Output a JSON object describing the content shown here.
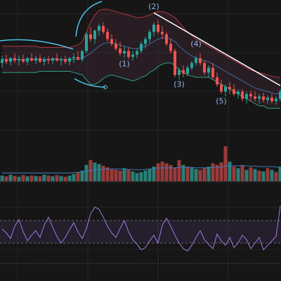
{
  "chart_data": [
    {
      "type": "candlestick",
      "title": "",
      "xlabel": "",
      "ylabel": "",
      "ylim": [
        0,
        100
      ],
      "grid": true,
      "colors": {
        "up": "#26a69a",
        "down": "#ef5350",
        "bb_upper": "#b0353f",
        "bb_middle": "#3f6ea8",
        "bb_lower": "#2e9e86",
        "trendline": "#ffffff",
        "annotation": "#4fc3e8"
      },
      "candles": [
        {
          "o": 52,
          "h": 58,
          "l": 48,
          "c": 55
        },
        {
          "o": 55,
          "h": 59,
          "l": 51,
          "c": 53
        },
        {
          "o": 53,
          "h": 57,
          "l": 50,
          "c": 56
        },
        {
          "o": 56,
          "h": 60,
          "l": 52,
          "c": 54
        },
        {
          "o": 54,
          "h": 58,
          "l": 50,
          "c": 55
        },
        {
          "o": 55,
          "h": 59,
          "l": 52,
          "c": 53
        },
        {
          "o": 53,
          "h": 57,
          "l": 50,
          "c": 56
        },
        {
          "o": 56,
          "h": 60,
          "l": 53,
          "c": 54
        },
        {
          "o": 54,
          "h": 58,
          "l": 51,
          "c": 56
        },
        {
          "o": 56,
          "h": 59,
          "l": 52,
          "c": 53
        },
        {
          "o": 53,
          "h": 57,
          "l": 50,
          "c": 55
        },
        {
          "o": 55,
          "h": 58,
          "l": 51,
          "c": 54
        },
        {
          "o": 54,
          "h": 57,
          "l": 51,
          "c": 56
        },
        {
          "o": 56,
          "h": 60,
          "l": 53,
          "c": 54
        },
        {
          "o": 54,
          "h": 57,
          "l": 50,
          "c": 55
        },
        {
          "o": 55,
          "h": 58,
          "l": 51,
          "c": 53
        },
        {
          "o": 53,
          "h": 57,
          "l": 50,
          "c": 56
        },
        {
          "o": 56,
          "h": 60,
          "l": 52,
          "c": 57
        },
        {
          "o": 57,
          "h": 62,
          "l": 54,
          "c": 55
        },
        {
          "o": 55,
          "h": 63,
          "l": 53,
          "c": 62
        },
        {
          "o": 62,
          "h": 78,
          "l": 60,
          "c": 76
        },
        {
          "o": 76,
          "h": 82,
          "l": 70,
          "c": 72
        },
        {
          "o": 72,
          "h": 80,
          "l": 68,
          "c": 79
        },
        {
          "o": 79,
          "h": 85,
          "l": 75,
          "c": 83
        },
        {
          "o": 83,
          "h": 86,
          "l": 76,
          "c": 78
        },
        {
          "o": 78,
          "h": 81,
          "l": 70,
          "c": 72
        },
        {
          "o": 72,
          "h": 76,
          "l": 66,
          "c": 68
        },
        {
          "o": 68,
          "h": 72,
          "l": 62,
          "c": 64
        },
        {
          "o": 64,
          "h": 70,
          "l": 58,
          "c": 60
        },
        {
          "o": 60,
          "h": 66,
          "l": 56,
          "c": 62
        },
        {
          "o": 62,
          "h": 65,
          "l": 55,
          "c": 57
        },
        {
          "o": 57,
          "h": 62,
          "l": 54,
          "c": 59
        },
        {
          "o": 59,
          "h": 64,
          "l": 56,
          "c": 62
        },
        {
          "o": 62,
          "h": 70,
          "l": 60,
          "c": 68
        },
        {
          "o": 68,
          "h": 74,
          "l": 64,
          "c": 72
        },
        {
          "o": 72,
          "h": 80,
          "l": 69,
          "c": 78
        },
        {
          "o": 78,
          "h": 86,
          "l": 74,
          "c": 84
        },
        {
          "o": 84,
          "h": 88,
          "l": 76,
          "c": 78
        },
        {
          "o": 78,
          "h": 83,
          "l": 72,
          "c": 76
        },
        {
          "o": 76,
          "h": 78,
          "l": 66,
          "c": 68
        },
        {
          "o": 68,
          "h": 72,
          "l": 60,
          "c": 62
        },
        {
          "o": 62,
          "h": 64,
          "l": 40,
          "c": 42
        },
        {
          "o": 42,
          "h": 48,
          "l": 38,
          "c": 46
        },
        {
          "o": 46,
          "h": 50,
          "l": 40,
          "c": 43
        },
        {
          "o": 43,
          "h": 50,
          "l": 41,
          "c": 48
        },
        {
          "o": 48,
          "h": 54,
          "l": 46,
          "c": 52
        },
        {
          "o": 52,
          "h": 58,
          "l": 50,
          "c": 56
        },
        {
          "o": 56,
          "h": 60,
          "l": 50,
          "c": 52
        },
        {
          "o": 52,
          "h": 54,
          "l": 42,
          "c": 44
        },
        {
          "o": 44,
          "h": 50,
          "l": 40,
          "c": 48
        },
        {
          "o": 48,
          "h": 52,
          "l": 38,
          "c": 40
        },
        {
          "o": 40,
          "h": 44,
          "l": 32,
          "c": 34
        },
        {
          "o": 34,
          "h": 38,
          "l": 26,
          "c": 28
        },
        {
          "o": 28,
          "h": 34,
          "l": 24,
          "c": 32
        },
        {
          "o": 32,
          "h": 36,
          "l": 26,
          "c": 30
        },
        {
          "o": 30,
          "h": 34,
          "l": 24,
          "c": 26
        },
        {
          "o": 26,
          "h": 30,
          "l": 22,
          "c": 28
        },
        {
          "o": 28,
          "h": 30,
          "l": 20,
          "c": 22
        },
        {
          "o": 22,
          "h": 28,
          "l": 18,
          "c": 26
        },
        {
          "o": 26,
          "h": 29,
          "l": 20,
          "c": 24
        },
        {
          "o": 24,
          "h": 28,
          "l": 20,
          "c": 22
        },
        {
          "o": 22,
          "h": 26,
          "l": 18,
          "c": 24
        },
        {
          "o": 24,
          "h": 27,
          "l": 19,
          "c": 21
        },
        {
          "o": 21,
          "h": 25,
          "l": 18,
          "c": 23
        },
        {
          "o": 23,
          "h": 26,
          "l": 18,
          "c": 20
        },
        {
          "o": 20,
          "h": 24,
          "l": 17,
          "c": 22
        },
        {
          "o": 22,
          "h": 30,
          "l": 20,
          "c": 28
        }
      ],
      "bollinger": {
        "upper": [
          66,
          66,
          66,
          66,
          66,
          66,
          66,
          66,
          66,
          65,
          65,
          65,
          65,
          65,
          65,
          65,
          65,
          66,
          67,
          70,
          78,
          86,
          92,
          96,
          97,
          97,
          96,
          95,
          94,
          93,
          92,
          91,
          90,
          90,
          91,
          92,
          94,
          95,
          95,
          94,
          92,
          90,
          86,
          82,
          78,
          75,
          72,
          70,
          68,
          66,
          64,
          62,
          60,
          58,
          56,
          54,
          52,
          50,
          48,
          46,
          45,
          44,
          43,
          42,
          41,
          40,
          40
        ],
        "middle": [
          55,
          55,
          55,
          55,
          55,
          55,
          55,
          55,
          55,
          55,
          55,
          55,
          55,
          55,
          55,
          55,
          55,
          55,
          55,
          56,
          58,
          60,
          63,
          66,
          68,
          69,
          69,
          68,
          67,
          66,
          65,
          64,
          64,
          65,
          66,
          68,
          70,
          72,
          73,
          73,
          72,
          70,
          66,
          63,
          60,
          58,
          56,
          55,
          54,
          53,
          51,
          49,
          47,
          45,
          43,
          41,
          39,
          37,
          35,
          33,
          31,
          30,
          29,
          28,
          27,
          26,
          27
        ],
        "lower": [
          44,
          44,
          44,
          44,
          44,
          44,
          44,
          44,
          44,
          45,
          45,
          45,
          45,
          45,
          45,
          45,
          45,
          44,
          43,
          42,
          38,
          34,
          34,
          36,
          39,
          41,
          42,
          41,
          40,
          39,
          38,
          37,
          38,
          40,
          41,
          44,
          46,
          49,
          51,
          52,
          52,
          50,
          46,
          44,
          42,
          41,
          40,
          40,
          40,
          40,
          38,
          36,
          34,
          32,
          30,
          28,
          26,
          24,
          22,
          20,
          18,
          16,
          16,
          14,
          14,
          14,
          14
        ]
      },
      "annotations": [
        {
          "label": "(1)",
          "index": 29,
          "value": 49
        },
        {
          "label": "(2)",
          "index": 36,
          "value": 97
        },
        {
          "label": "(3)",
          "index": 42,
          "value": 32
        },
        {
          "label": "(4)",
          "index": 46,
          "value": 66
        },
        {
          "label": "(5)",
          "index": 52,
          "value": 18
        }
      ],
      "trendline": [
        {
          "index": 36,
          "value": 94
        },
        {
          "index": 66,
          "value": 33
        }
      ]
    },
    {
      "type": "bar",
      "title": "",
      "xlabel": "",
      "ylabel": "",
      "ylim": [
        0,
        100
      ],
      "values": [
        14,
        12,
        16,
        13,
        11,
        15,
        12,
        14,
        13,
        12,
        16,
        14,
        12,
        15,
        13,
        11,
        14,
        18,
        22,
        26,
        40,
        52,
        46,
        42,
        38,
        34,
        30,
        28,
        26,
        32,
        28,
        24,
        20,
        22,
        26,
        30,
        36,
        44,
        48,
        44,
        40,
        34,
        52,
        40,
        36,
        34,
        30,
        28,
        32,
        36,
        44,
        40,
        46,
        86,
        48,
        36,
        32,
        40,
        28,
        34,
        30,
        26,
        24,
        32,
        28,
        22,
        36
      ],
      "direction": [
        "u",
        "d",
        "u",
        "d",
        "u",
        "d",
        "u",
        "d",
        "u",
        "d",
        "u",
        "d",
        "u",
        "d",
        "u",
        "d",
        "u",
        "u",
        "d",
        "u",
        "u",
        "d",
        "u",
        "u",
        "d",
        "d",
        "d",
        "d",
        "d",
        "u",
        "d",
        "u",
        "u",
        "u",
        "u",
        "u",
        "u",
        "d",
        "d",
        "d",
        "d",
        "d",
        "d",
        "u",
        "d",
        "u",
        "u",
        "d",
        "d",
        "u",
        "d",
        "d",
        "d",
        "d",
        "u",
        "d",
        "u",
        "d",
        "u",
        "d",
        "u",
        "d",
        "u",
        "d",
        "u",
        "d",
        "u"
      ],
      "moving_average": [
        20,
        20,
        20,
        20,
        20,
        20,
        20,
        20,
        20,
        20,
        20,
        20,
        20,
        20,
        20,
        20,
        20,
        21,
        22,
        23,
        25,
        27,
        28,
        29,
        30,
        30,
        30,
        30,
        30,
        30,
        29,
        29,
        28,
        28,
        29,
        30,
        31,
        32,
        33,
        33,
        33,
        33,
        34,
        34,
        34,
        34,
        33,
        33,
        33,
        33,
        34,
        34,
        35,
        37,
        38,
        38,
        38,
        38,
        38,
        37,
        37,
        36,
        36,
        36,
        36,
        35,
        35
      ]
    },
    {
      "type": "line",
      "title": "",
      "xlabel": "",
      "ylabel": "",
      "ylim": [
        0,
        100
      ],
      "reference_lines": [
        70,
        30
      ],
      "values": [
        55,
        48,
        38,
        60,
        72,
        50,
        34,
        44,
        52,
        40,
        62,
        76,
        58,
        42,
        30,
        40,
        54,
        66,
        50,
        38,
        56,
        82,
        94,
        90,
        76,
        60,
        48,
        40,
        56,
        70,
        50,
        36,
        28,
        18,
        22,
        34,
        44,
        30,
        62,
        74,
        60,
        44,
        30,
        20,
        16,
        26,
        40,
        52,
        36,
        28,
        20,
        46,
        34,
        26,
        40,
        22,
        30,
        44,
        36,
        20,
        30,
        40,
        18,
        26,
        34,
        42,
        96
      ]
    }
  ]
}
